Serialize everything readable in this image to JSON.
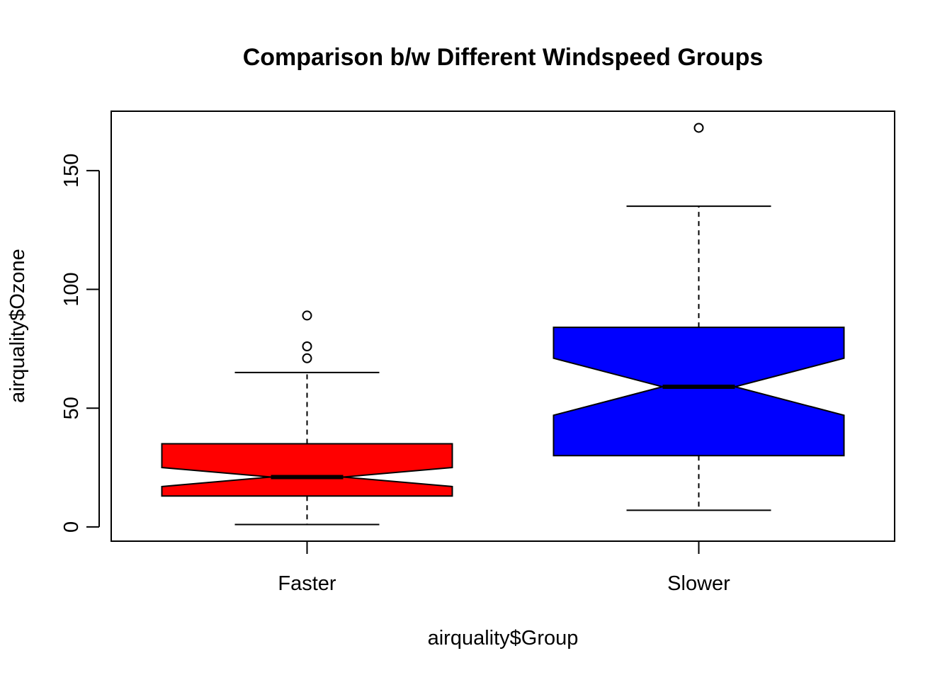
{
  "chart_data": {
    "type": "boxplot",
    "title": "Comparison b/w Different Windspeed Groups",
    "xlabel": "airquality$Group",
    "ylabel": "airquality$Ozone",
    "ylim": [
      -6,
      175
    ],
    "y_ticks": [
      0,
      50,
      100,
      150
    ],
    "y_tick_labels": [
      "0",
      "50",
      "100",
      "150"
    ],
    "notch": true,
    "groups": [
      {
        "label": "Faster",
        "color": "#ff0000",
        "whisker_low": 1,
        "q1": 13,
        "median": 21,
        "q3": 35,
        "whisker_high": 65,
        "notch_low": 17,
        "notch_high": 25,
        "outliers": [
          71,
          76,
          89
        ]
      },
      {
        "label": "Slower",
        "color": "#0000ff",
        "whisker_low": 7,
        "q1": 30,
        "median": 59,
        "q3": 84,
        "whisker_high": 135,
        "notch_low": 47,
        "notch_high": 71,
        "outliers": [
          168
        ]
      }
    ]
  }
}
